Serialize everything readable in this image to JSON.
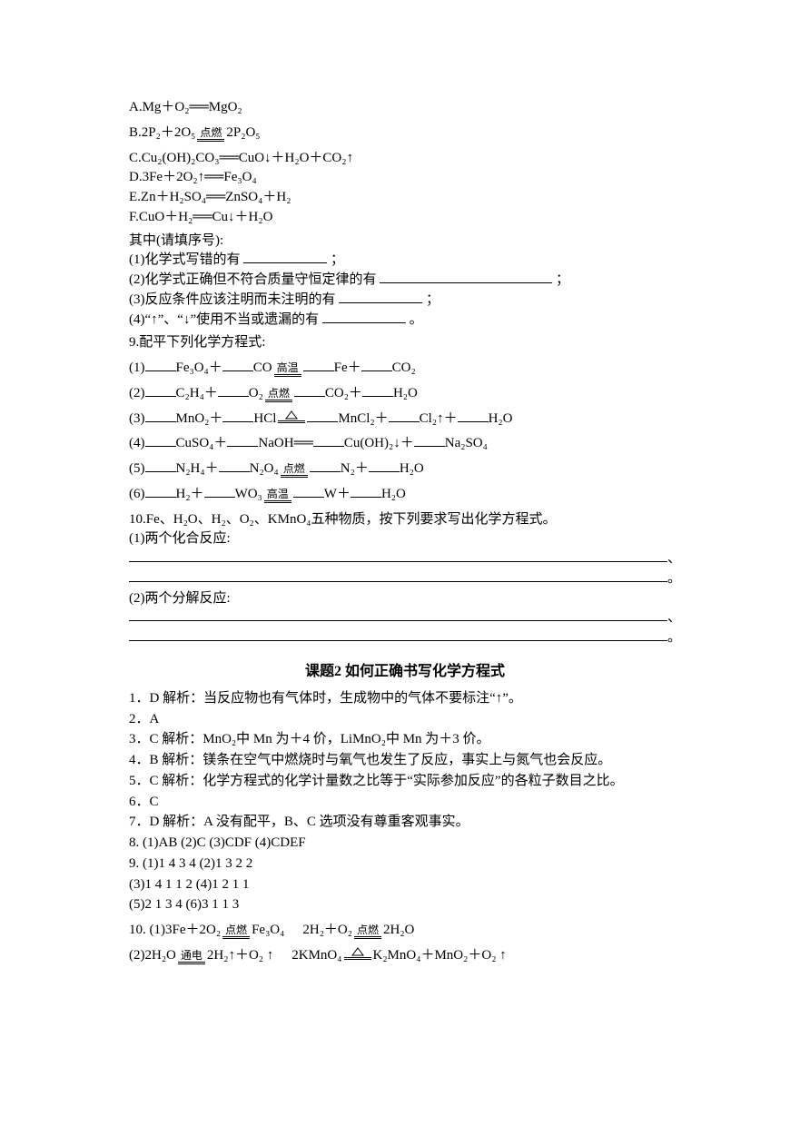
{
  "options": {
    "A": "A.Mg＋O₂══MgO₂",
    "B_pre": "B.2P₂＋2O₅",
    "B_cond": "点燃",
    "B_post": " 2P₂O₅",
    "C": "C.Cu₂(OH)₂CO₃══CuO↓＋H₂O＋CO₂↑",
    "D": "D.3Fe＋2O₂↑══Fe₃O₄",
    "E": "E.Zn＋H₂SO₄══ZnSO₄＋H₂",
    "F": "F.CuO＋H₂══Cu↓＋H₂O"
  },
  "q8": {
    "intro": "其中(请填序号):",
    "p1_pre": "(1)化学式写错的有",
    "p1_suf": "；",
    "p2_pre": "(2)化学式正确但不符合质量守恒定律的有",
    "p2_suf": "；",
    "p3_pre": "(3)反应条件应该注明而未注明的有",
    "p3_suf": "；",
    "p4_pre": "(4)“↑”、“↓”使用不当或遗漏的有",
    "p4_suf": "。"
  },
  "q9": {
    "title": "9.配平下列化学方程式:",
    "eqs": [
      {
        "lhs1": "Fe₃O₄＋",
        "lhs2": "CO",
        "cond": "高温",
        "rhs1": "Fe＋",
        "rhs2": "CO₂"
      },
      {
        "lhs1": "C₂H₄＋",
        "lhs2": "O₂",
        "cond": "点燃",
        "rhs1": "CO₂＋",
        "rhs2": "H₂O"
      },
      {
        "lhs1": "MnO₂＋",
        "lhs2": "HCl",
        "cond": "△",
        "rhs1": "MnCl₂＋",
        "rhs2": "Cl₂↑＋",
        "rhs3": "H₂O"
      },
      {
        "lhs1": "CuSO₄＋",
        "lhs2": "NaOH══",
        "cond": "",
        "rhs1": "Cu(OH)₂↓＋",
        "rhs2": "Na₂SO₄"
      },
      {
        "lhs1": "N₂H₄＋",
        "lhs2": "N₂O₄",
        "cond": "点燃",
        "rhs1": "N₂＋",
        "rhs2": "H₂O"
      },
      {
        "lhs1": "H₂＋",
        "lhs2": "WO₃",
        "cond": "高温",
        "rhs1": "W＋",
        "rhs2": "H₂O"
      }
    ]
  },
  "q10": {
    "stem": "10.Fe、H₂O、H₂、O₂、KMnO₄五种物质，按下列要求写出化学方程式。",
    "p1": "(1)两个化合反应:",
    "p2": "(2)两个分解反应:"
  },
  "answer_title": "课题2  如何正确书写化学方程式",
  "answers": [
    "1．D  解析：当反应物也有气体时，生成物中的气体不要标注“↑”。",
    "2．A",
    "3．C  解析：MnO₂中 Mn 为＋4 价，LiMnO₂中 Mn 为＋3 价。",
    "4．B  解析：镁条在空气中燃烧时与氧气也发生了反应，事实上与氮气也会反应。",
    "5．C  解析：化学方程式的化学计量数之比等于“实际参加反应”的各粒子数目之比。",
    "6．C",
    "7．D  解析：A 没有配平，B、C 选项没有尊重客观事实。",
    "8. (1)AB  (2)C  (3)CDF  (4)CDEF",
    "9. (1)1  4  3  4       (2)1  3  2  2",
    "(3)1  4  1  1  2       (4)1  2  1  1",
    "(5)2  1  3  4          (6)3  1  1  3"
  ],
  "ans10": {
    "p1a_pre": "10. (1)3Fe＋2O₂",
    "p1a_cond": "点燃",
    "p1a_post": " Fe₃O₄",
    "p1b_pre": "2H₂＋O₂",
    "p1b_cond": "点燃",
    "p1b_post": " 2H₂O",
    "p2a_pre": "(2)2H₂O",
    "p2a_cond": "通电",
    "p2a_post": " 2H₂↑＋O₂ ↑",
    "p2b_pre": "2KMnO₄",
    "p2b_cond": "△",
    "p2b_post": " K₂MnO₄＋MnO₂＋O₂ ↑"
  },
  "punct": {
    "dunhao": "、",
    "juhao": "。"
  }
}
